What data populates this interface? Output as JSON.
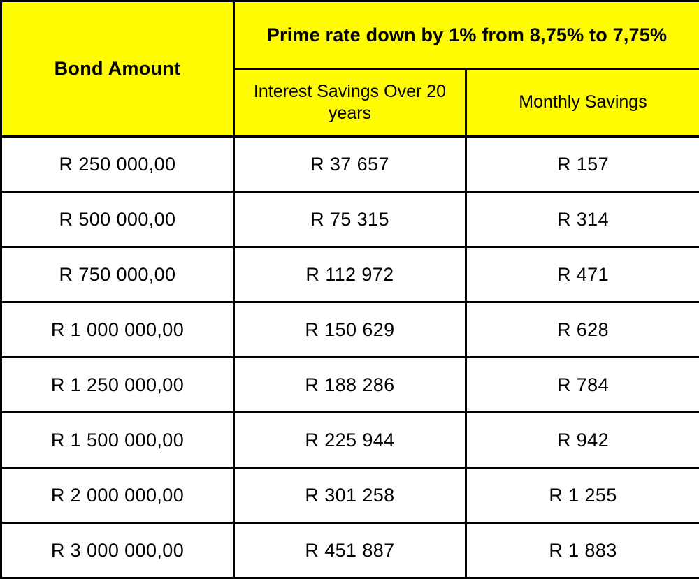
{
  "chart_data": {
    "type": "table",
    "title": "Prime rate down by 1% from 8,75% to 7,75%",
    "columns": [
      "Bond Amount",
      "Interest Savings Over 20 years",
      "Monthly Savings"
    ],
    "rows": [
      [
        "R 250 000,00",
        "R 37 657",
        "R 157"
      ],
      [
        "R 500 000,00",
        "R 75 315",
        "R 314"
      ],
      [
        "R 750 000,00",
        "R 112 972",
        "R 471"
      ],
      [
        "R 1 000 000,00",
        "R 150 629",
        "R 628"
      ],
      [
        "R 1 250 000,00",
        "R 188 286",
        "R 784"
      ],
      [
        "R 1 500 000,00",
        "R 225 944",
        "R 942"
      ],
      [
        "R 2 000 000,00",
        "R 301 258",
        "R 1 255"
      ],
      [
        "R 3 000 000,00",
        "R 451 887",
        "R 1 883"
      ]
    ],
    "currency": "R",
    "layout": {
      "header_rows": 2,
      "bond_amount_spans_header_rows": true,
      "prime_rate_title_spans_columns": [
        "Interest Savings Over 20 years",
        "Monthly Savings"
      ]
    }
  },
  "colors": {
    "header_bg": "#FFFB00",
    "border": "#000000",
    "text": "#000000",
    "body_bg": "#FFFFFF"
  }
}
